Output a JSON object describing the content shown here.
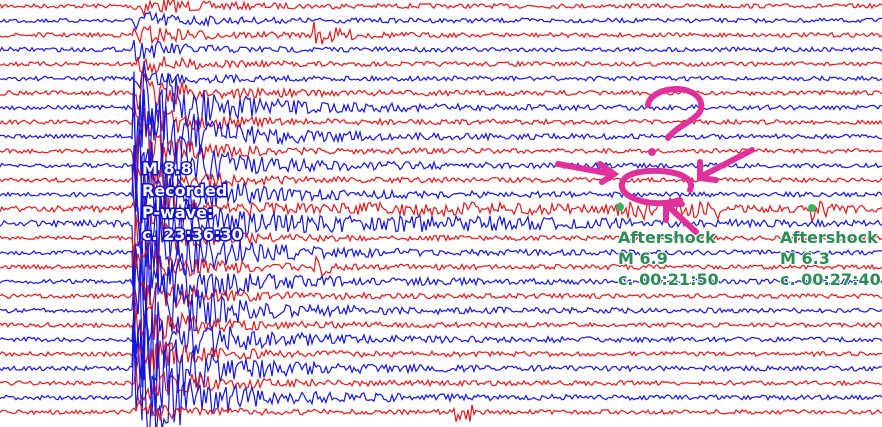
{
  "annotations": [
    {
      "lines": [
        "M 8.8",
        "Recorded",
        "P-wave:",
        "c. 23:36:30"
      ]
    },
    {
      "lines": [
        "Aftershock",
        "M 6.9",
        "c. 00:21:50"
      ]
    },
    {
      "lines": [
        "Aftershock",
        "M 6.3",
        "c. 00:27:40"
      ]
    }
  ]
}
